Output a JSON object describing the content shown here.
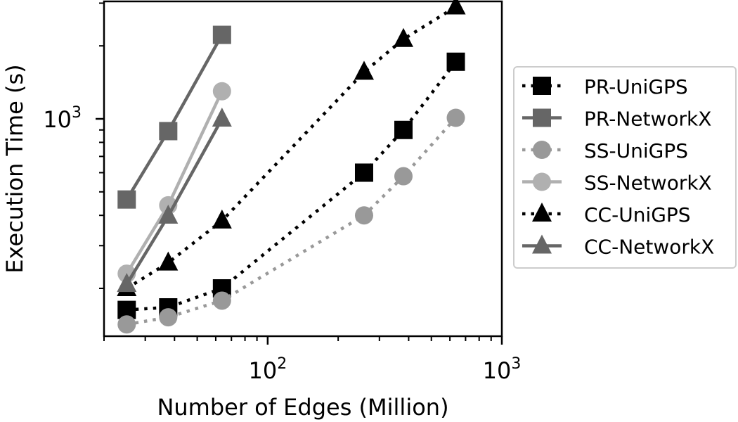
{
  "chart_data": {
    "type": "line",
    "title": "",
    "xlabel": "Number of Edges (Million)",
    "ylabel": "Execution Time (s)",
    "xscale": "log",
    "yscale": "log",
    "xlim": [
      20,
      1000
    ],
    "ylim": [
      127,
      3050
    ],
    "x_ticks": [
      {
        "value": 100,
        "base": "10",
        "exp": "2"
      },
      {
        "value": 1000,
        "base": "10",
        "exp": "3"
      }
    ],
    "y_ticks": [
      {
        "value": 1000,
        "base": "10",
        "exp": "3"
      }
    ],
    "legend_position": "outside-right",
    "grid": false,
    "series": [
      {
        "name": "PR-UniGPS",
        "marker": "square",
        "line": "dotted",
        "color": "#000000",
        "x": [
          25,
          37.6,
          63.8,
          258,
          380,
          636
        ],
        "y": [
          163,
          167,
          200,
          600,
          900,
          1720
        ]
      },
      {
        "name": "PR-NetworkX",
        "marker": "square",
        "line": "solid",
        "color": "#666666",
        "x": [
          25,
          37.6,
          63.8
        ],
        "y": [
          465,
          890,
          2220
        ]
      },
      {
        "name": "SS-UniGPS",
        "marker": "circle",
        "line": "dotted",
        "color": "#999999",
        "x": [
          25,
          37.6,
          63.8,
          258,
          380,
          636
        ],
        "y": [
          142,
          152,
          178,
          400,
          580,
          1010
        ]
      },
      {
        "name": "SS-NetworkX",
        "marker": "circle",
        "line": "solid",
        "color": "#b0b0b0",
        "x": [
          25,
          37.6,
          63.8
        ],
        "y": [
          230,
          440,
          1300
        ]
      },
      {
        "name": "CC-UniGPS",
        "marker": "triangle",
        "line": "dotted",
        "color": "#000000",
        "x": [
          25,
          37.6,
          63.8,
          258,
          380,
          636
        ],
        "y": [
          200,
          255,
          380,
          1560,
          2130,
          2900
        ]
      },
      {
        "name": "CC-NetworkX",
        "marker": "triangle",
        "line": "solid",
        "color": "#666666",
        "x": [
          25,
          37.6,
          63.8
        ],
        "y": [
          208,
          398,
          1000
        ]
      }
    ]
  }
}
